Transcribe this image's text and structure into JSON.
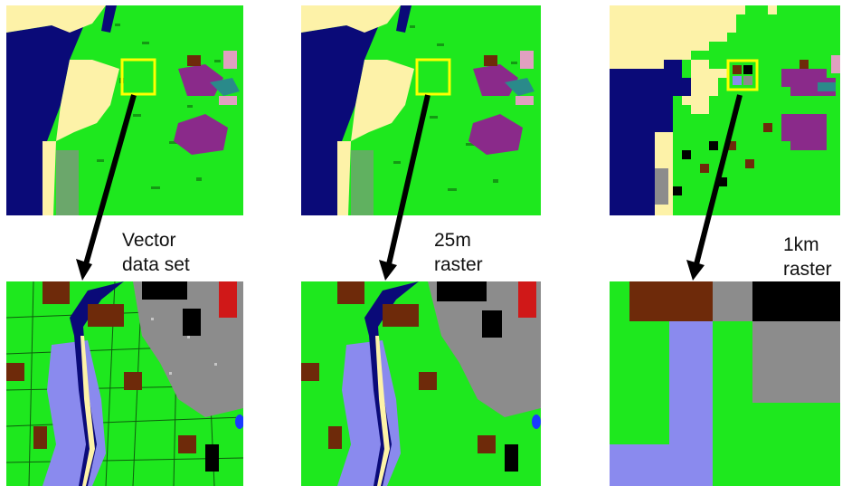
{
  "colors": {
    "water": "#0a0a78",
    "sand": "#fdf2a8",
    "vegetation": "#1ee81e",
    "urban_gray": "#8c8c8c",
    "purple": "#8a2a8a",
    "teal": "#2a8a8a",
    "pink": "#e0a0c0",
    "brown": "#6e2a0a",
    "black": "#000000",
    "lavender": "#8a8aee",
    "red": "#d01818",
    "highlight_box": "#ffff00"
  },
  "panels": [
    {
      "id": "vector-overview",
      "type": "overview-map"
    },
    {
      "id": "25m-overview",
      "type": "overview-map"
    },
    {
      "id": "1km-overview",
      "type": "overview-map"
    },
    {
      "id": "vector-detail",
      "type": "detail-map"
    },
    {
      "id": "25m-detail",
      "type": "detail-map"
    },
    {
      "id": "1km-detail",
      "type": "detail-map"
    }
  ],
  "labels": {
    "vector": {
      "line1": "Vector",
      "line2": "data set"
    },
    "raster25": {
      "line1": "25m",
      "line2": "raster"
    },
    "raster1km": {
      "line1": "1km",
      "line2": "raster"
    }
  },
  "icons": {
    "arrow": "down-arrow-icon",
    "zoom": "highlight-box-icon"
  }
}
